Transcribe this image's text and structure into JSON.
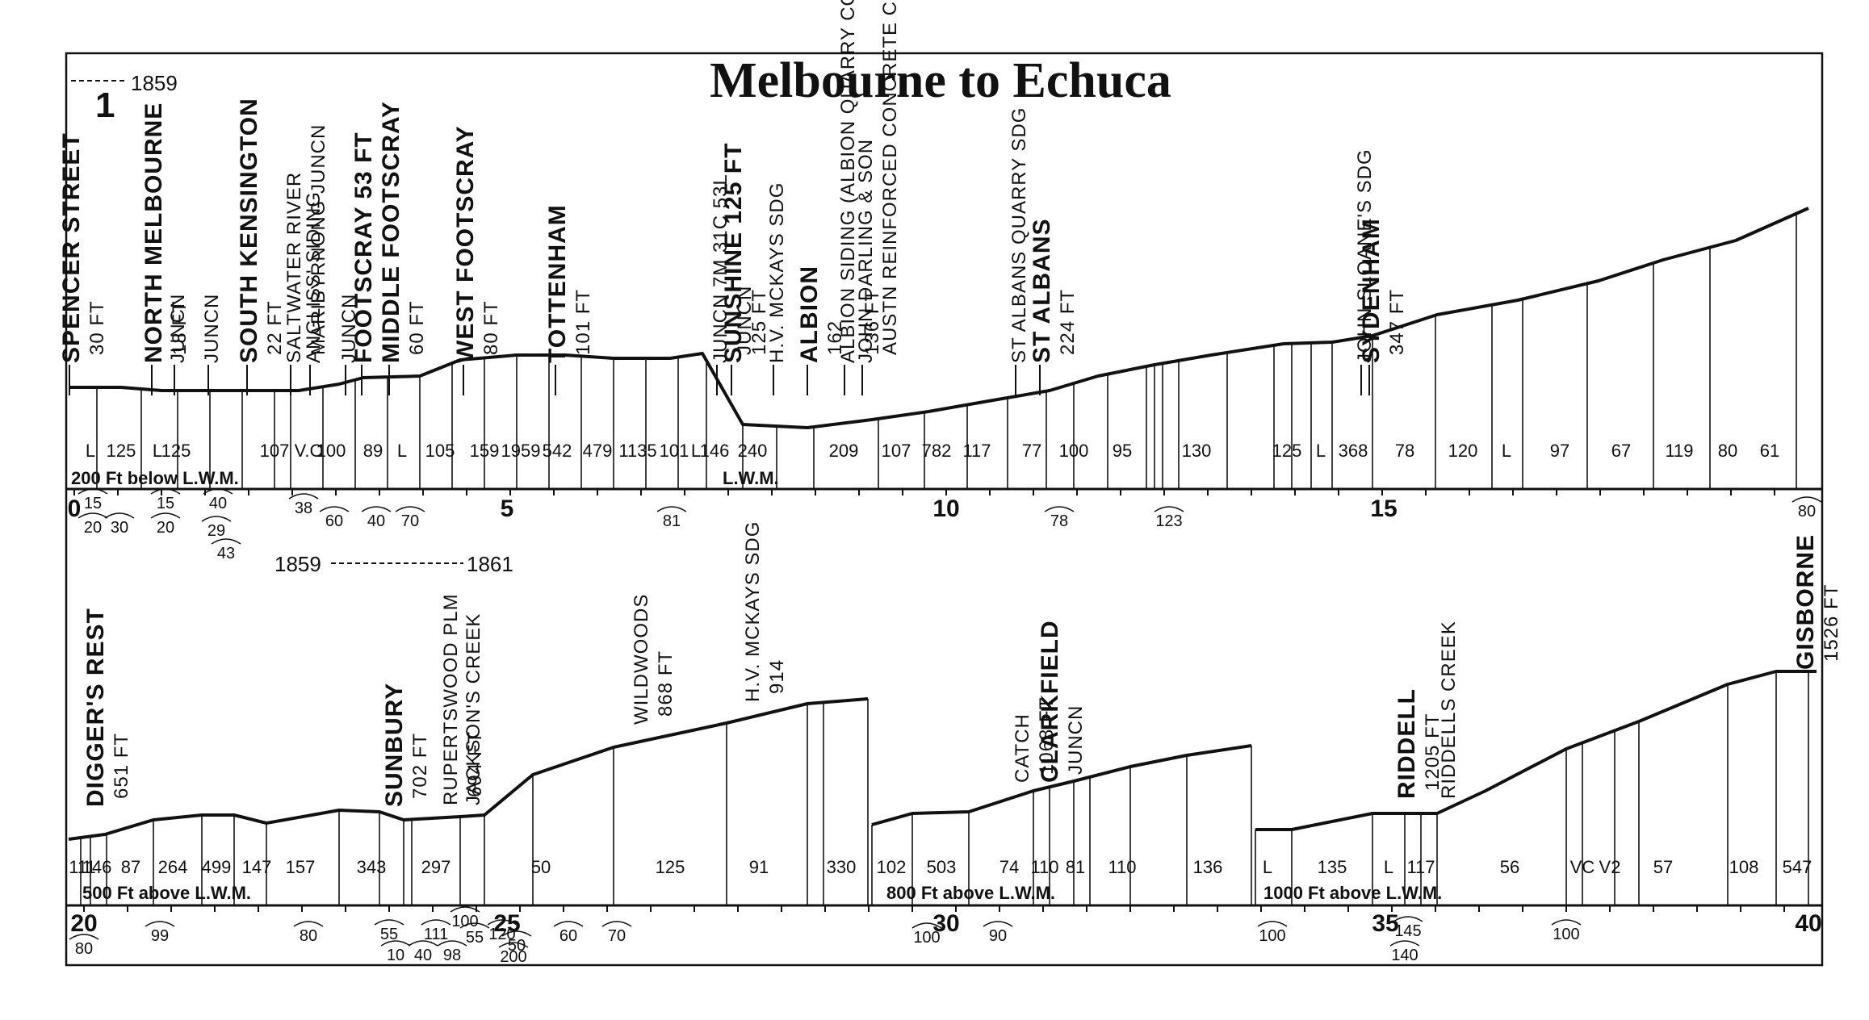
{
  "title": "Melbourne to Echuca",
  "sheet_number": "1",
  "date_markers": {
    "top": "1859",
    "middle_left": "1859",
    "middle_right": "1861"
  },
  "top_panel": {
    "datum_labels": [
      "200 Ft below L.W.M.",
      "L.W.M."
    ],
    "mile_labels": [
      "0",
      "5",
      "10",
      "15"
    ],
    "stations": [
      {
        "name": "SPENCER STREET",
        "detail": "30 FT",
        "big": true
      },
      {
        "name": "NORTH MELBOURNE",
        "detail": "18 FT",
        "big": true
      },
      {
        "name": "JUNCN",
        "detail": "",
        "big": false
      },
      {
        "name": "JUNCN",
        "detail": "",
        "big": false
      },
      {
        "name": "SOUTH KENSINGTON",
        "detail": "22 FT",
        "big": true
      },
      {
        "name": "SALTWATER RIVER",
        "detail": "MARIBYRNONG JUNCN",
        "big": false
      },
      {
        "name": "ANGLISS' SIDING",
        "detail": "",
        "big": false
      },
      {
        "name": "JUNCN",
        "detail": "",
        "big": false
      },
      {
        "name": "FOOTSCRAY 53 FT",
        "detail": "",
        "big": true
      },
      {
        "name": "MIDDLE FOOTSCRAY",
        "detail": "60 FT",
        "big": true
      },
      {
        "name": "WEST FOOTSCRAY",
        "detail": "80 FT",
        "big": true
      },
      {
        "name": "TOTTENHAM",
        "detail": "101 FT",
        "big": true
      },
      {
        "name": "JUNCN 7M 31C 53L",
        "detail": "JUNCN",
        "big": false
      },
      {
        "name": "SUNSHINE 125 FT",
        "detail": "125 FT",
        "big": true
      },
      {
        "name": "H.V. MCKAYS SDG",
        "detail": "",
        "big": false
      },
      {
        "name": "ALBION",
        "detail": "162",
        "big": true
      },
      {
        "name": "ALBION SIDING (ALBION QUARRY CO)",
        "detail": "136 FT",
        "big": false
      },
      {
        "name": "JOHN DARLING & SON",
        "detail": "AUSTN REINFORCED CONCRETE CO",
        "big": false
      },
      {
        "name": "ST ALBANS QUARRY SDG",
        "detail": "",
        "big": false
      },
      {
        "name": "ST ALBANS",
        "detail": "224 FT",
        "big": true
      },
      {
        "name": "JOHN SLOANE'S SDG",
        "detail": "",
        "big": false
      },
      {
        "name": "SYDENHAM",
        "detail": "347 FT",
        "big": true
      }
    ],
    "gradients": [
      "L",
      "125",
      "L",
      "125",
      "107",
      "V.C",
      "100",
      "89",
      "L",
      "105",
      "159",
      "1959",
      "542",
      "479",
      "1135",
      "101",
      "L",
      "146",
      "240",
      "209",
      "107",
      "782",
      "117",
      "77",
      "100",
      "95",
      "130",
      "125",
      "L",
      "368",
      "78",
      "120",
      "L",
      "97",
      "67",
      "119",
      "80",
      "61"
    ],
    "curves": [
      "15",
      "20",
      "30",
      "15",
      "20",
      "40",
      "29",
      "43",
      "38",
      "60",
      "40",
      "70",
      "81",
      "78",
      "123",
      "80"
    ]
  },
  "bottom_panel": {
    "datum_labels": [
      "500 Ft above L.W.M.",
      "800 Ft above L.W.M.",
      "1000 Ft above L.W.M."
    ],
    "mile_labels": [
      "20",
      "25",
      "30",
      "35",
      "40"
    ],
    "stations": [
      {
        "name": "DIGGER'S REST",
        "detail": "651 FT",
        "big": true
      },
      {
        "name": "SUNBURY",
        "detail": "702 FT",
        "big": true
      },
      {
        "name": "RUPERTSWOOD PLM",
        "detail": "694 FT",
        "big": false
      },
      {
        "name": "JACKSON'S CREEK",
        "detail": "",
        "big": false
      },
      {
        "name": "WILDWOODS",
        "detail": "868 FT",
        "big": false
      },
      {
        "name": "H.V. MCKAYS SDG",
        "detail": "914",
        "big": false
      },
      {
        "name": "CATCH",
        "detail": "1068 FT",
        "big": false
      },
      {
        "name": "CLARKFIELD",
        "detail": "JUNCN",
        "big": true
      },
      {
        "name": "RIDDELL",
        "detail": "1205 FT",
        "big": true
      },
      {
        "name": "RIDDELLS CREEK",
        "detail": "",
        "big": false
      },
      {
        "name": "GISBORNE",
        "detail": "1526 FT",
        "big": true
      }
    ],
    "gradients": [
      "111",
      "146",
      "87",
      "264",
      "499",
      "147",
      "157",
      "343",
      "297",
      "50",
      "125",
      "91",
      "330",
      "102",
      "503",
      "74",
      "110",
      "81",
      "110",
      "136",
      "L",
      "135",
      "L",
      "117",
      "56",
      "VC",
      "V2",
      "57",
      "108",
      "547"
    ],
    "curves": [
      "80",
      "99",
      "80",
      "55",
      "10",
      "111",
      "40",
      "98",
      "100",
      "55",
      "120",
      "50",
      "200",
      "60",
      "70",
      "100",
      "90",
      "100",
      "145",
      "140",
      "100"
    ]
  }
}
